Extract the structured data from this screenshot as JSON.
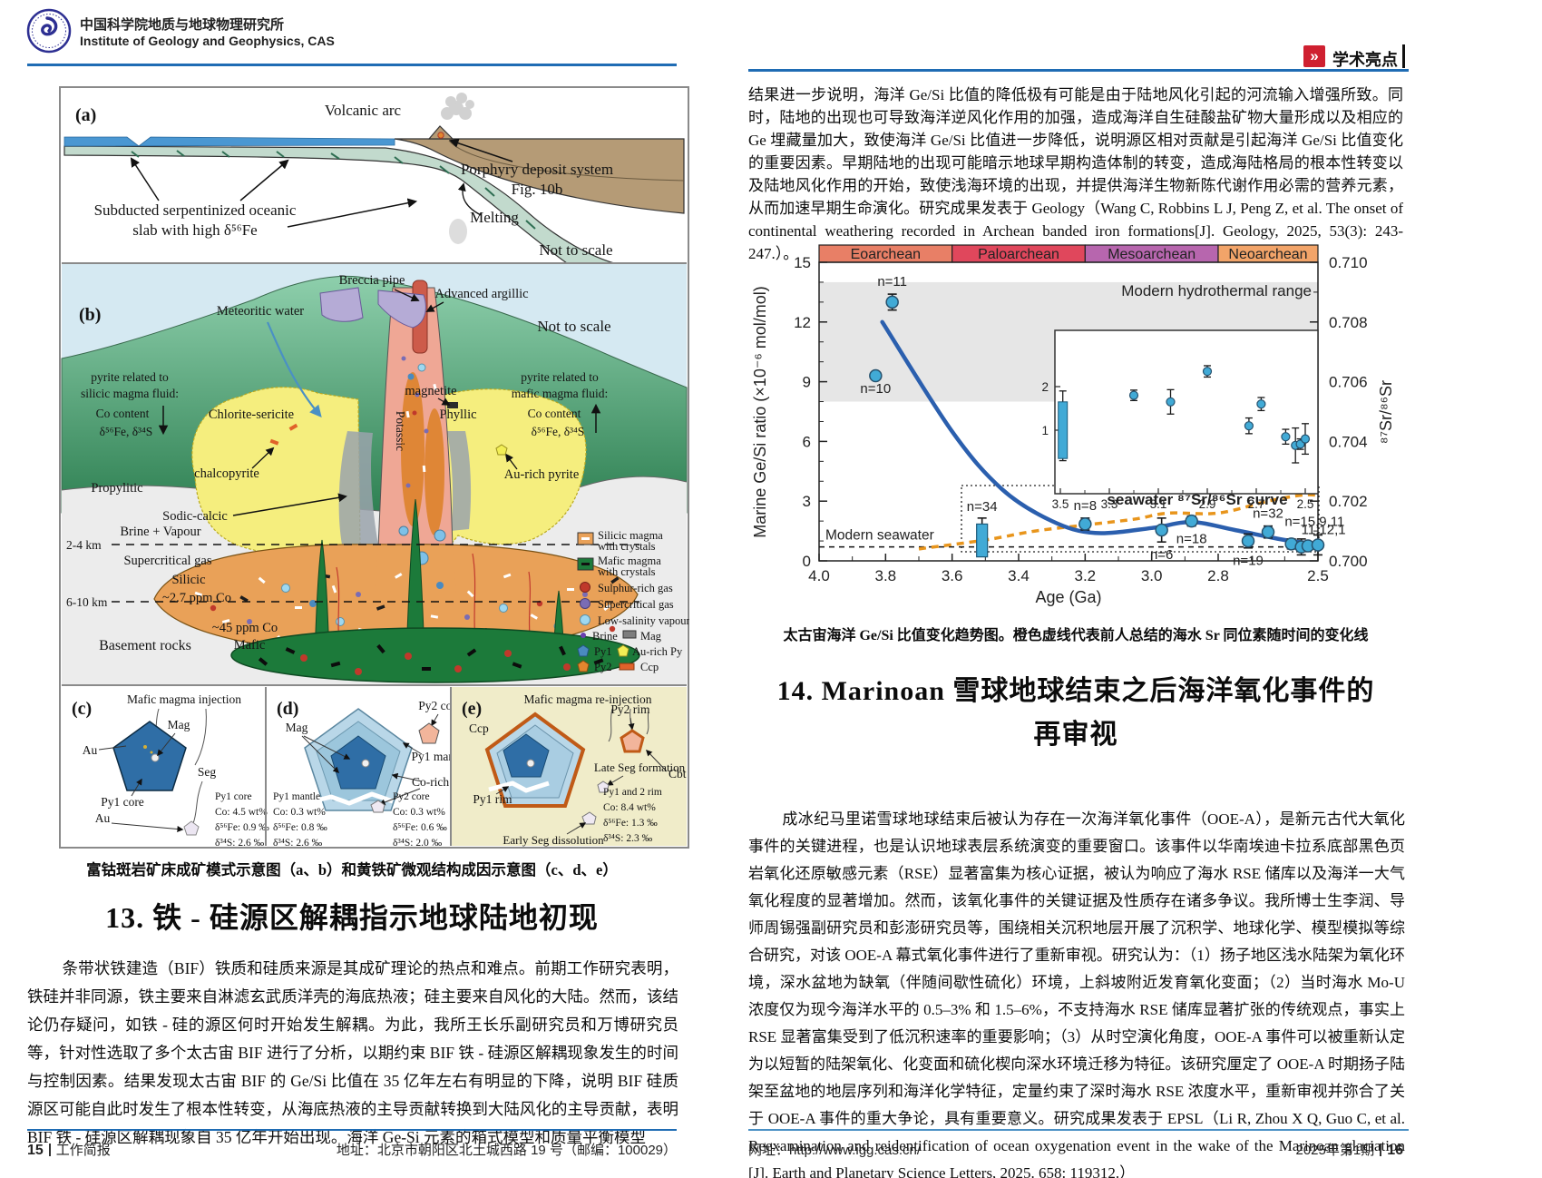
{
  "page_left": {
    "header": {
      "org_cn": "中国科学院地质与地球物理研究所",
      "org_en": "Institute of Geology and Geophysics, CAS"
    },
    "fig": {
      "a": {
        "label": "(a)",
        "volcanic_arc": "Volcanic arc",
        "porphyry1": "Porphyry deposit system",
        "porphyry2": "Fig. 10b",
        "melting": "Melting",
        "slab1": "Subducted serpentinized oceanic",
        "slab2": "slab with high δ⁵⁶Fe",
        "not_to_scale": "Not to scale"
      },
      "b": {
        "label": "(b)",
        "breccia_pipe": "Breccia pipe",
        "advanced_argillic": "Advanced argillic",
        "meteoritic_water": "Meteoritic water",
        "not_to_scale": "Not to scale",
        "pyr_sil_1": "pyrite related to",
        "pyr_sil_2": "silicic magma fluid:",
        "pyr_sil_3": "Co content",
        "pyr_sil_4": "δ⁵⁶Fe, δ³⁴S",
        "chlorite_sericite": "Chlorite-sericite",
        "magnetite": "magnetite",
        "phyllic": "Phyllic",
        "potassic": "Potassic",
        "pyr_maf_1": "pyrite related to",
        "pyr_maf_2": "mafic magma fluid:",
        "pyr_maf_3": "Co content",
        "pyr_maf_4": "δ⁵⁶Fe, δ³⁴S",
        "chalcopyrite": "chalcopyrite",
        "propylitic": "Propylitic",
        "au_rich_pyrite": "Au-rich pyrite",
        "sodic_calcic": "Sodic-calcic",
        "brine_vapour": "Brine + Vapour",
        "depth_24": "2-4 km",
        "supercritical_gas": "Supercritical gas",
        "silicic": "Silicic",
        "ppm27": "~2.7 ppm Co",
        "depth_610": "6-10 km",
        "ppm45": "~45 ppm Co",
        "mafic": "Mafic",
        "basement": "Basement rocks",
        "legend": {
          "silicic1": "Silicic magma",
          "silicic2": "with crystals",
          "mafic1": "Mafic magma",
          "mafic2": "with crystals",
          "sulphur": "Sulphur-rich gas",
          "supercritical": "Supercritical gas",
          "low_salinity": "Low-salinity vapour",
          "brine": "Brine",
          "mag": "Mag",
          "py1": "Py1",
          "au_rich_py": "Au-rich Py",
          "py2": "Py2",
          "ccp": "Ccp"
        }
      },
      "c": {
        "label": "(c)",
        "title": "Mafic magma injection",
        "au1": "Au",
        "mag": "Mag",
        "py1_core": "Py1 core",
        "seg": "Seg",
        "au2": "Au",
        "s1": "Py1 core",
        "s2": "Co: 4.5 wt%",
        "s3": "δ⁵⁶Fe: 0.9 ‰",
        "s4": "δ³⁴S: 2.6 ‰"
      },
      "d": {
        "label": "(d)",
        "py2_core": "Py2 core",
        "mag": "Mag",
        "py1_mantle": "Py1 mantle",
        "co_rich": "Co-rich zone",
        "l1": "Py1 mantle",
        "l2": "Co: 0.3 wt%",
        "l3": "δ⁵⁶Fe: 0.8 ‰",
        "l4": "δ³⁴S: 2.6 ‰",
        "r1": "Py2 core",
        "r2": "Co: 0.3 wt%",
        "r3": "δ⁵⁶Fe: 0.6 ‰",
        "r4": "δ³⁴S: 2.0 ‰"
      },
      "e": {
        "label": "(e)",
        "title": "Mafic magma re-injection",
        "ccp": "Ccp",
        "py2_rim": "Py2 rim",
        "cbt": "Cbt",
        "py1_rim": "Py1 rim",
        "late_seg": "Late Seg formation",
        "early_seg": "Early Seg dissolution",
        "s1": "Py1 and 2 rim",
        "s2": "Co: 8.4 wt%",
        "s3": "δ⁵⁶Fe: 1.3 ‰",
        "s4": "δ³⁴S: 2.3 ‰"
      }
    },
    "figure_caption": "富钴斑岩矿床成矿模式示意图（a、b）和黄铁矿微观结构成因示意图（c、d、e）",
    "section13": {
      "title": "13. 铁 - 硅源区解耦指示地球陆地初现",
      "body": "条带状铁建造（BIF）铁质和硅质来源是其成矿理论的热点和难点。前期工作研究表明，铁硅并非同源，铁主要来自淋滤玄武质洋壳的海底热液；硅主要来自风化的大陆。然而，该结论仍存疑问，如铁 - 硅的源区何时开始发生解耦。为此，我所王长乐副研究员和万博研究员等，针对性选取了多个太古宙 BIF 进行了分析，以期约束 BIF 铁 - 硅源区解耦现象发生的时间与控制因素。结果发现太古宙 BIF 的 Ge/Si 比值在 35 亿年左右有明显的下降，说明 BIF 硅质源区可能自此时发生了根本性转变，从海底热液的主导贡献转换到大陆风化的主导贡献，表明 BIF 铁 - 硅源区解耦现象自 35 亿年开始出现。海洋 Ge-Si 元素的箱式模型和质量平衡模型"
    },
    "footer": {
      "page": "15",
      "divider": "|",
      "label": "工作简报",
      "address": "地址：北京市朝阳区北土城西路 19 号（邮编：100029）"
    }
  },
  "page_right": {
    "header": {
      "badge_icon": "»",
      "badge": "学术亮点"
    },
    "intro": "结果进一步说明，海洋 Ge/Si 比值的降低极有可能是由于陆地风化引起的河流输入增强所致。同时，陆地的出现也可导致海洋逆风化作用的加强，造成海洋自生硅酸盐矿物大量形成以及相应的 Ge 埋藏量加大，致使海洋 Ge/Si 比值进一步降低，说明源区相对贡献是引起海洋 Ge/Si 比值变化的重要因素。早期陆地的出现可能暗示地球早期构造体制的转变，造成海陆格局的根本性转变以及陆地风化作用的开始，致使浅海环境的出现，并提供海洋生物新陈代谢作用必需的营养元素，从而加速早期生命演化。研究成果发表于 Geology（Wang C, Robbins L J, Peng Z, et al. The onset of continental weathering recorded in Archean banded iron formations[J]. Geology, 2025, 53(3): 243-247.）。",
    "chart_caption": "太古宙海洋 Ge/Si 比值变化趋势图。橙色虚线代表前人总结的海水 Sr 同位素随时间的变化线",
    "section14": {
      "title": "14. Marinoan 雪球地球结束之后海洋氧化事件的再审视",
      "body": "成冰纪马里诺雪球地球结束后被认为存在一次海洋氧化事件（OOE-A），是新元古代大氧化事件的关键进程，也是认识地球表层系统演变的重要窗口。该事件以华南埃迪卡拉系底部黑色页岩氧化还原敏感元素（RSE）显著富集为核心证据，被认为响应了海水 RSE 储库以及海洋一大气氧化程度的显著增加。然而，该氧化事件的关键证据及性质存在诸多争议。我所博士生李润、导师周锡强副研究员和彭澎研究员等，围绕相关沉积地层开展了沉积学、地球化学、模型模拟等综合研究，对该 OOE-A 幕式氧化事件进行了重新审视。研究认为：（1）扬子地区浅水陆架为氧化环境，深水盆地为缺氧（伴随间歇性硫化）环境，上斜坡附近发育氧化变面；（2）当时海水 Mo-U 浓度仅为现今海洋水平的 0.5–3% 和 1.5–6%，不支持海水 RSE 储库显著扩张的传统观点，事实上 RSE 显著富集受到了低沉积速率的重要影响；（3）从时空演化角度，OOE-A 事件可以被重新认定为以短暂的陆架氧化、化变面和硫化楔向深水环境迁移为特征。该研究厘定了 OOE-A 时期扬子陆架至盆地的地层序列和海洋化学特征，定量约束了深时海水 RSE 浓度水平，重新审视并弥合了关于 OOE-A 事件的重大争论，具有重要意义。研究成果发表于 EPSL（Li R, Zhou X Q, Guo C, et al. Reexamination and reidentification of ocean oxygenation event in the wake of the Marinoan glaciation [J]. Earth and Planetary Science Letters, 2025. 658: 119312.）"
    },
    "footer": {
      "website": "网址：http://www.igg.cas.cn/",
      "issue": "2025年第1期",
      "divider": "|",
      "page": "16"
    }
  },
  "chart_data": {
    "type": "scatter",
    "xlabel": "Age (Ga)",
    "ylabel_left": "Marine Ge/Si ratio (×10⁻⁶ mol/mol)",
    "ylabel_right": "⁸⁷Sr/⁸⁶Sr",
    "x_range": [
      4.0,
      2.5
    ],
    "y_left_range": [
      0,
      15
    ],
    "y_right_range": [
      0.7,
      0.71
    ],
    "x_ticks": [
      4.0,
      3.8,
      3.6,
      3.4,
      3.2,
      3.0,
      2.8,
      2.5
    ],
    "y_ticks_left": [
      0,
      3,
      6,
      9,
      12,
      15
    ],
    "y_ticks_right": [
      0.71,
      0.708,
      0.706,
      0.704,
      0.702,
      0.7
    ],
    "grid": false,
    "era_bands": [
      {
        "label": "Eoarchean",
        "from": 4.0,
        "to": 3.6,
        "color": "#e87f66"
      },
      {
        "label": "Paloarchean",
        "from": 3.6,
        "to": 3.2,
        "color": "#e0475c"
      },
      {
        "label": "Mesoarchean",
        "from": 3.2,
        "to": 2.8,
        "color": "#b766ae"
      },
      {
        "label": "Neoarchean",
        "from": 2.8,
        "to": 2.5,
        "color": "#f2a469"
      }
    ],
    "hydrothermal_band": {
      "label": "Modern hydrothermal range",
      "from": 8,
      "to": 14,
      "color": "#e6e6e6"
    },
    "modern_seawater": {
      "label": "Modern seawater",
      "value": 0.7
    },
    "sr_curve_label": "seawater ⁸⁷Sr/⁸⁶Sr curve",
    "accent_blue": "#2b5fae",
    "accent_orange": "#e8951c",
    "point_fill": "#41aad6",
    "points": [
      {
        "age": 3.83,
        "value": 9.3,
        "err": 0,
        "n": "n=10",
        "label_pos": "below"
      },
      {
        "age": 3.78,
        "value": 13.0,
        "err": 0.4,
        "n": "n=11",
        "label_pos": "above"
      },
      {
        "age": 3.2,
        "value": 1.85,
        "err": 0.3,
        "n": "n=8",
        "label_pos": "above"
      },
      {
        "age": 2.97,
        "value": 1.55,
        "err": 0.6,
        "n": "n=6",
        "label_pos": "below"
      },
      {
        "age": 2.88,
        "value": 2.0,
        "err": 0.25,
        "n": "n=18",
        "label_pos": "below"
      },
      {
        "age": 2.71,
        "value": 1.0,
        "err": 0.35,
        "n": "n=19",
        "label_pos": "below"
      },
      {
        "age": 2.65,
        "value": 1.45,
        "err": 0.3,
        "n": "n=32",
        "label_pos": "above"
      },
      {
        "age": 2.58,
        "value": 0.85,
        "err": 0.25
      },
      {
        "age": 2.55,
        "value": 0.7,
        "err": 0.4
      },
      {
        "age": 2.53,
        "value": 0.75,
        "err": 0.15
      },
      {
        "age": 2.5,
        "value": 0.8,
        "err": 0.5
      }
    ],
    "bar": {
      "age": 3.51,
      "from": 0.2,
      "to": 1.85,
      "whisker": 2.15,
      "n": "n=34"
    },
    "cluster_labels": [
      {
        "text": "n=15,9,11",
        "age": 2.6,
        "value": 1.75
      },
      {
        "text": "11,12,1",
        "age": 2.55,
        "value": 1.35
      }
    ],
    "trend_curve": [
      [
        3.81,
        12.0
      ],
      [
        3.6,
        6.5
      ],
      [
        3.45,
        3.6
      ],
      [
        3.3,
        2.0
      ],
      [
        3.17,
        1.4
      ],
      [
        3.0,
        1.65
      ],
      [
        2.88,
        1.95
      ],
      [
        2.75,
        1.55
      ],
      [
        2.6,
        1.05
      ],
      [
        2.5,
        0.85
      ]
    ],
    "sr_curve": [
      [
        3.7,
        0.7004
      ],
      [
        3.5,
        0.7007
      ],
      [
        3.35,
        0.701
      ],
      [
        3.2,
        0.7012
      ],
      [
        3.05,
        0.7014
      ],
      [
        2.95,
        0.7016
      ],
      [
        2.8,
        0.7016
      ],
      [
        2.65,
        0.702
      ],
      [
        2.55,
        0.7022
      ],
      [
        2.5,
        0.7022
      ]
    ],
    "inset": {
      "x_ticks": [
        3.5,
        3.3,
        3.1,
        2.9,
        2.7,
        2.5
      ],
      "y_ticks": [
        1,
        2
      ],
      "bar": {
        "age": 3.49,
        "from": 0.35,
        "to": 1.65,
        "whisker_low": 0.3,
        "whisker_high": 1.9
      },
      "points": [
        {
          "age": 3.2,
          "value": 1.8,
          "err": 0.12
        },
        {
          "age": 3.05,
          "value": 1.65,
          "err": 0.28
        },
        {
          "age": 2.9,
          "value": 2.35,
          "err": 0.13
        },
        {
          "age": 2.73,
          "value": 1.1,
          "err": 0.18
        },
        {
          "age": 2.68,
          "value": 1.6,
          "err": 0.15
        },
        {
          "age": 2.58,
          "value": 0.85,
          "err": 0.17
        },
        {
          "age": 2.54,
          "value": 0.65,
          "err": 0.4
        },
        {
          "age": 2.52,
          "value": 0.68,
          "err": 0.12
        },
        {
          "age": 2.5,
          "value": 0.8,
          "err": 0.35
        }
      ]
    }
  }
}
